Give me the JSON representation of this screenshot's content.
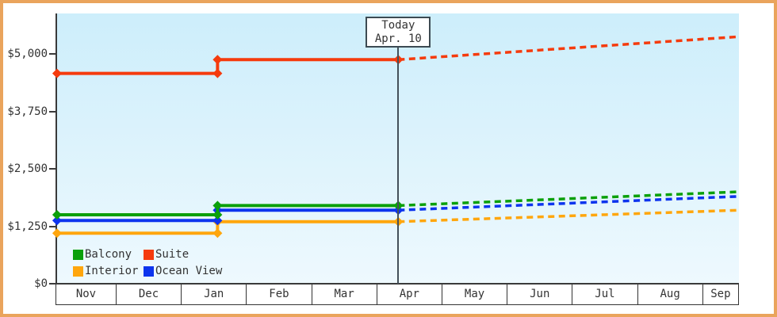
{
  "window": {
    "border_color": "#eaa45c",
    "background": "#ffffff"
  },
  "chart_data": {
    "type": "line",
    "title": "",
    "x_axis": {
      "labels": [
        "Nov",
        "Dec",
        "Jan",
        "Feb",
        "Mar",
        "Apr",
        "May",
        "Jun",
        "Jul",
        "Aug",
        "Sep"
      ]
    },
    "y_axis": {
      "tick_labels": [
        "$0",
        "$1,250",
        "$2,500",
        "$3,750",
        "$5,000"
      ],
      "tick_values": [
        0,
        1250,
        2500,
        3750,
        5000
      ],
      "max": 5880,
      "grid": false
    },
    "today_marker": {
      "line1": "Today",
      "line2": "Apr. 10",
      "month_position": 5.33
    },
    "series": [
      {
        "name": "Interior",
        "color": "#ffa60d",
        "solid_points": [
          {
            "m": 0.1,
            "v": 1100
          },
          {
            "m": 2.56,
            "v": 1100
          },
          {
            "m": 2.56,
            "v": 1350
          },
          {
            "m": 5.33,
            "v": 1350
          }
        ],
        "projected_point": {
          "m": 10.55,
          "v": 1600
        }
      },
      {
        "name": "Ocean View",
        "color": "#0d34ee",
        "solid_points": [
          {
            "m": 0.1,
            "v": 1375
          },
          {
            "m": 2.56,
            "v": 1375
          },
          {
            "m": 2.56,
            "v": 1600
          },
          {
            "m": 5.33,
            "v": 1600
          }
        ],
        "projected_point": {
          "m": 10.55,
          "v": 1900
        }
      },
      {
        "name": "Balcony",
        "color": "#0ba00b",
        "solid_points": [
          {
            "m": 0.1,
            "v": 1500
          },
          {
            "m": 2.56,
            "v": 1500
          },
          {
            "m": 2.56,
            "v": 1700
          },
          {
            "m": 5.33,
            "v": 1700
          }
        ],
        "projected_point": {
          "m": 10.55,
          "v": 2000
        }
      },
      {
        "name": "Suite",
        "color": "#f53b0d",
        "solid_points": [
          {
            "m": 0.1,
            "v": 4575
          },
          {
            "m": 2.56,
            "v": 4575
          },
          {
            "m": 2.56,
            "v": 4875
          },
          {
            "m": 5.33,
            "v": 4875
          }
        ],
        "projected_point": {
          "m": 10.55,
          "v": 5375
        }
      }
    ],
    "legend": [
      {
        "label": "Balcony",
        "color": "#0ba00b"
      },
      {
        "label": "Suite",
        "color": "#f53b0d"
      },
      {
        "label": "Interior",
        "color": "#ffa60d"
      },
      {
        "label": "Ocean View",
        "color": "#0d34ee"
      }
    ]
  }
}
